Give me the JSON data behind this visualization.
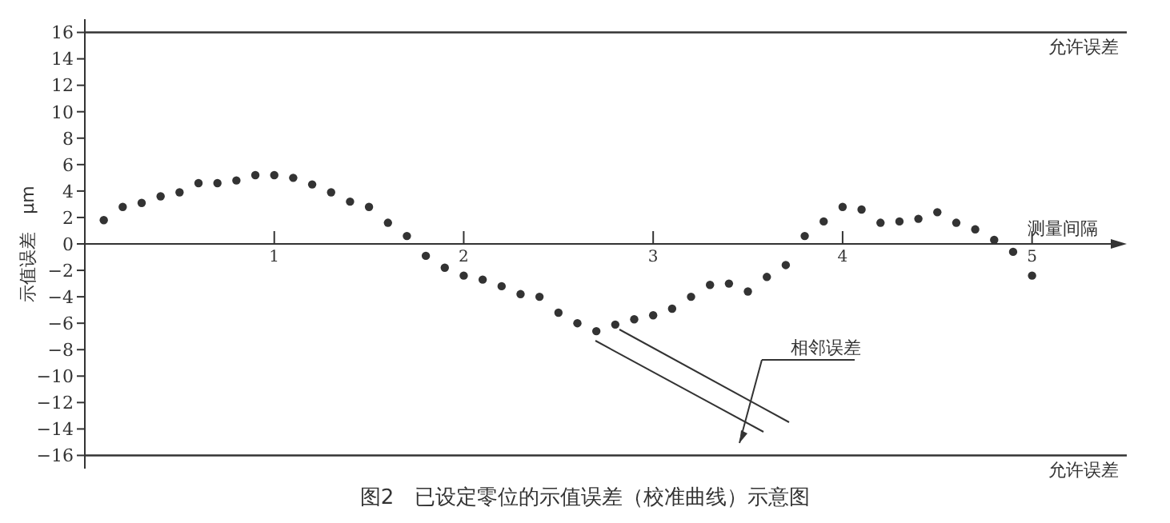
{
  "chart_data": {
    "type": "scatter",
    "title": "图2　已设定零位的示值误差（校准曲线）示意图",
    "xlabel": "测量间隔",
    "ylabel": "示值误差　μm",
    "x": [
      0.1,
      0.2,
      0.3,
      0.4,
      0.5,
      0.6,
      0.7,
      0.8,
      0.9,
      1.0,
      1.1,
      1.2,
      1.3,
      1.4,
      1.5,
      1.6,
      1.7,
      1.8,
      1.9,
      2.0,
      2.1,
      2.2,
      2.3,
      2.4,
      2.5,
      2.6,
      2.7,
      2.8,
      2.9,
      3.0,
      3.1,
      3.2,
      3.3,
      3.4,
      3.5,
      3.6,
      3.7,
      3.8,
      3.9,
      4.0,
      4.1,
      4.2,
      4.3,
      4.4,
      4.5,
      4.6,
      4.7,
      4.8,
      4.9,
      5.0
    ],
    "series": [
      {
        "color": "#333333",
        "values": [
          1.8,
          2.8,
          3.1,
          3.6,
          3.9,
          4.6,
          4.6,
          4.8,
          5.2,
          5.2,
          5.0,
          4.5,
          3.9,
          3.2,
          2.8,
          1.6,
          0.6,
          -0.9,
          -1.8,
          -2.4,
          -2.7,
          -3.2,
          -3.8,
          -4.0,
          -5.2,
          -6.0,
          -6.6,
          -6.1,
          -5.7,
          -5.4,
          -4.9,
          -4.0,
          -3.1,
          -3.0,
          -3.6,
          -2.5,
          -1.6,
          0.6,
          1.7,
          2.8,
          2.6,
          1.6,
          1.7,
          1.9,
          2.4,
          1.6,
          1.1,
          0.3,
          -0.6,
          -2.4
        ]
      }
    ],
    "marker": "circle",
    "xlim": [
      0,
      5.5
    ],
    "xticks": [
      1,
      2,
      3,
      4,
      5
    ],
    "ylim": [
      -17,
      17
    ],
    "yticks": [
      -16,
      -14,
      -12,
      -10,
      -8,
      -6,
      -4,
      -2,
      0,
      2,
      4,
      6,
      8,
      10,
      12,
      14,
      16
    ],
    "ref_lines": [
      {
        "axis": "y",
        "value": 16,
        "label": "允许误差"
      },
      {
        "axis": "y",
        "value": -16,
        "label": "允许误差"
      }
    ],
    "annotations": [
      "相邻误差"
    ],
    "grid": false
  }
}
